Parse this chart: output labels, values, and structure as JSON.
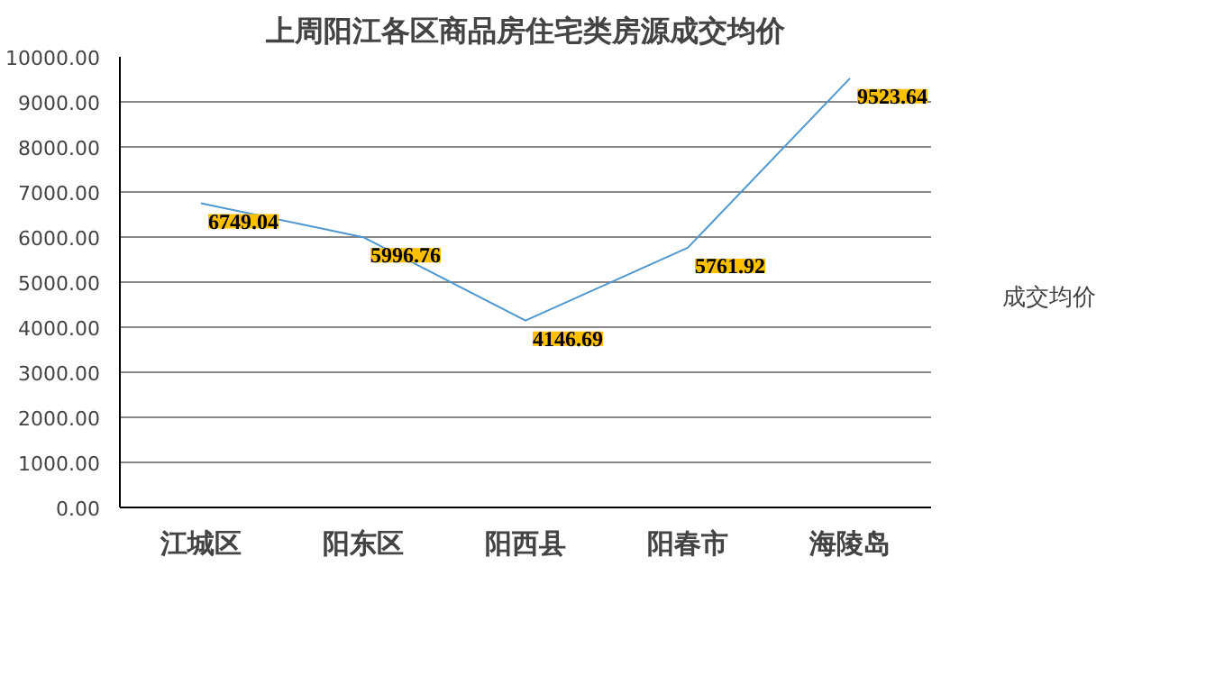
{
  "chart_data": {
    "type": "line",
    "title": "上周阳江各区商品房住宅类房源成交均价",
    "categories": [
      "江城区",
      "阳东区",
      "阳西县",
      "阳春市",
      "海陵岛"
    ],
    "series": [
      {
        "name": "成交均价",
        "color": "#4f97d0",
        "values": [
          6749.04,
          5996.76,
          4146.69,
          5761.92,
          9523.64
        ]
      }
    ],
    "ylim": [
      0,
      10000
    ],
    "yticks": [
      {
        "value": 0,
        "label": "0.00"
      },
      {
        "value": 1000,
        "label": "1000.00"
      },
      {
        "value": 2000,
        "label": "2000.00"
      },
      {
        "value": 3000,
        "label": "3000.00"
      },
      {
        "value": 4000,
        "label": "4000.00"
      },
      {
        "value": 5000,
        "label": "5000.00"
      },
      {
        "value": 6000,
        "label": "6000.00"
      },
      {
        "value": 7000,
        "label": "7000.00"
      },
      {
        "value": 8000,
        "label": "8000.00"
      },
      {
        "value": 9000,
        "label": "9000.00"
      },
      {
        "value": 10000,
        "label": "10000.00"
      }
    ],
    "grid": "y",
    "legend": "right",
    "data_labels": true,
    "marker": "none"
  }
}
